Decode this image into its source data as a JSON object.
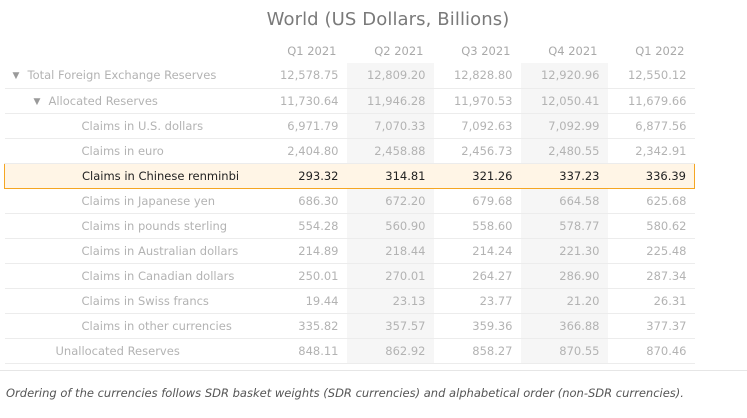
{
  "title": "World (US Dollars, Billions)",
  "columns": [
    "Q1 2021",
    "Q2 2021",
    "Q3 2021",
    "Q4 2021",
    "Q1 2022"
  ],
  "rows": [
    {
      "label": "Total Foreign Exchange Reserves",
      "level": 0,
      "expandable": true,
      "values": [
        "12,578.75",
        "12,809.20",
        "12,828.80",
        "12,920.96",
        "12,550.12"
      ]
    },
    {
      "label": "Allocated Reserves",
      "level": 1,
      "expandable": true,
      "values": [
        "11,730.64",
        "11,946.28",
        "11,970.53",
        "12,050.41",
        "11,679.66"
      ]
    },
    {
      "label": "Claims in U.S. dollars",
      "level": 2,
      "values": [
        "6,971.79",
        "7,070.33",
        "7,092.63",
        "7,092.99",
        "6,877.56"
      ]
    },
    {
      "label": "Claims in euro",
      "level": 2,
      "values": [
        "2,404.80",
        "2,458.88",
        "2,456.73",
        "2,480.55",
        "2,342.91"
      ]
    },
    {
      "label": "Claims in Chinese renminbi",
      "level": 2,
      "highlighted": true,
      "values": [
        "293.32",
        "314.81",
        "321.26",
        "337.23",
        "336.39"
      ]
    },
    {
      "label": "Claims in Japanese yen",
      "level": 2,
      "values": [
        "686.30",
        "672.20",
        "679.68",
        "664.58",
        "625.68"
      ]
    },
    {
      "label": "Claims in pounds sterling",
      "level": 2,
      "values": [
        "554.28",
        "560.90",
        "558.60",
        "578.77",
        "580.62"
      ]
    },
    {
      "label": "Claims in Australian dollars",
      "level": 2,
      "values": [
        "214.89",
        "218.44",
        "214.24",
        "221.30",
        "225.48"
      ]
    },
    {
      "label": "Claims in Canadian dollars",
      "level": 2,
      "values": [
        "250.01",
        "270.01",
        "264.27",
        "286.90",
        "287.34"
      ]
    },
    {
      "label": "Claims in Swiss francs",
      "level": 2,
      "values": [
        "19.44",
        "23.13",
        "23.77",
        "21.20",
        "26.31"
      ]
    },
    {
      "label": "Claims in other currencies",
      "level": 2,
      "values": [
        "335.82",
        "357.57",
        "359.36",
        "366.88",
        "377.37"
      ]
    },
    {
      "label": "Unallocated Reserves",
      "level": 1,
      "values": [
        "848.11",
        "862.92",
        "858.27",
        "870.55",
        "870.46"
      ]
    }
  ],
  "footnote": "Ordering of the currencies follows SDR basket weights (SDR currencies) and alphabetical order (non-SDR currencies).",
  "colors": {
    "highlight_border": "#f5a623",
    "highlight_bg": "#fff5e6"
  },
  "icons": {
    "expand": "chevron-down-icon"
  }
}
